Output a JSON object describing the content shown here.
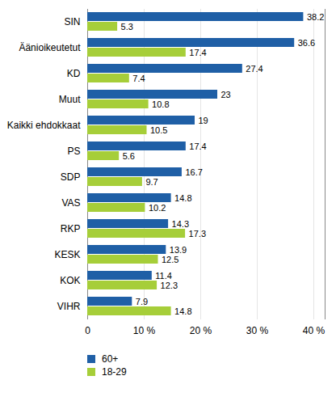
{
  "chart_data": {
    "type": "bar",
    "orientation": "horizontal",
    "categories": [
      "SIN",
      "Äänioikeutetut",
      "KD",
      "Muut",
      "Kaikki ehdokkaat",
      "PS",
      "SDP",
      "VAS",
      "RKP",
      "KESK",
      "KOK",
      "VIHR"
    ],
    "series": [
      {
        "name": "60+",
        "color": "#1f5fa6",
        "values": [
          38.2,
          36.6,
          27.4,
          23,
          19,
          17.4,
          16.7,
          14.8,
          14.3,
          13.9,
          11.4,
          7.9
        ]
      },
      {
        "name": "18-29",
        "color": "#a6ce39",
        "values": [
          5.3,
          17.4,
          7.4,
          10.8,
          10.5,
          5.6,
          9.7,
          10.2,
          17.3,
          12.5,
          12.3,
          14.8
        ]
      }
    ],
    "xlim": [
      0,
      42
    ],
    "xticks": [
      0,
      {
        "value": 10,
        "label": "10 %"
      },
      {
        "value": 20,
        "label": "20 %"
      },
      {
        "value": 30,
        "label": "30 %"
      },
      {
        "value": 40,
        "label": "40 %"
      }
    ],
    "grid": true,
    "data_labels": true,
    "legend": "bottom-left"
  }
}
